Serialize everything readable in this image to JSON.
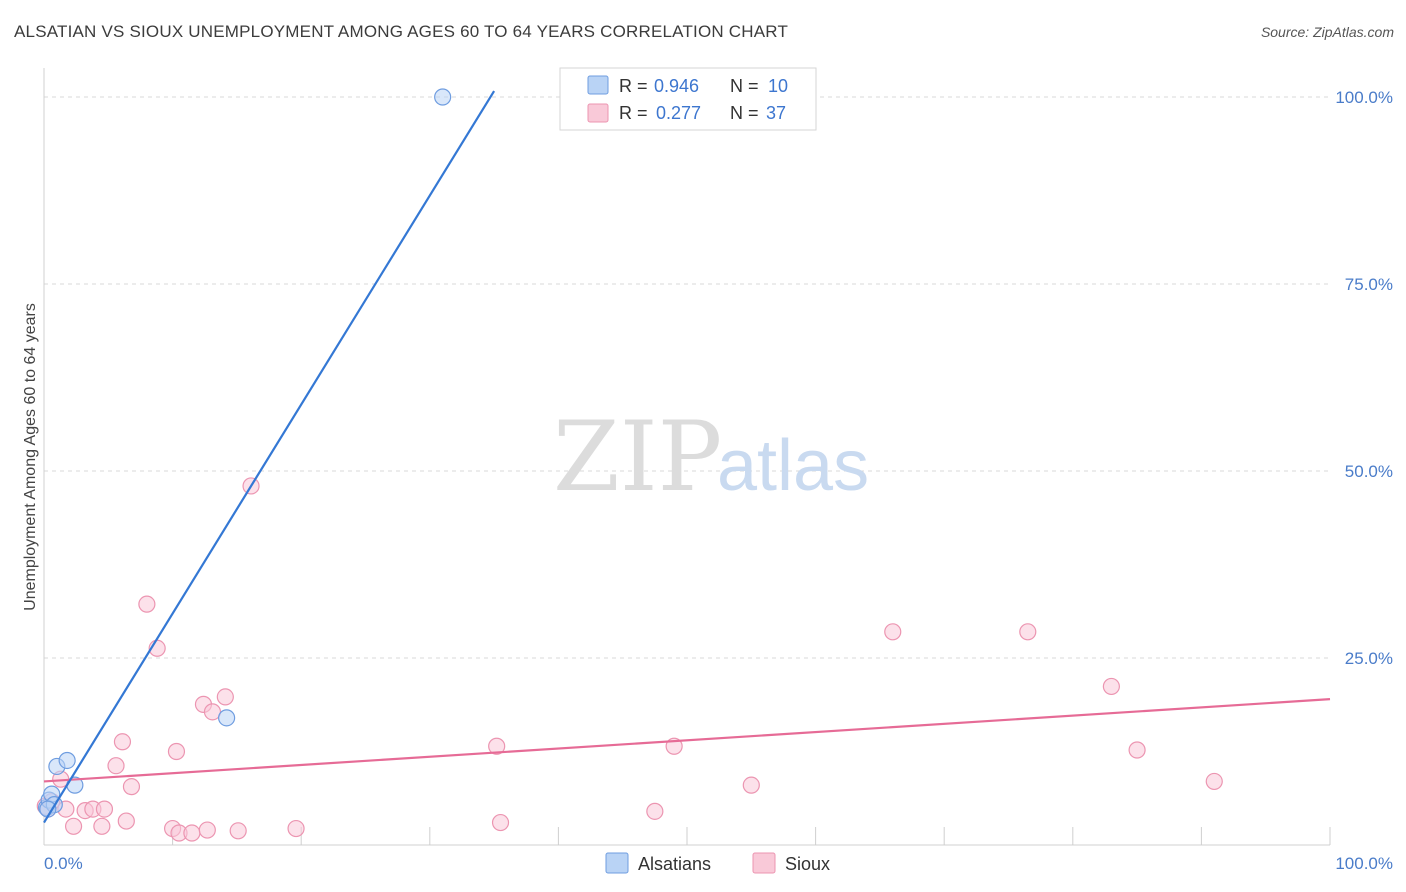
{
  "title": "ALSATIAN VS SIOUX UNEMPLOYMENT AMONG AGES 60 TO 64 YEARS CORRELATION CHART",
  "source": "Source: ZipAtlas.com",
  "watermark": {
    "zip": "ZIP",
    "atlas": "atlas"
  },
  "legend": {
    "r_label": "R =",
    "n_label": "N =",
    "rows": [
      {
        "name": "Alsatians",
        "r": "0.946",
        "n": "10",
        "fill": "#b9d3f5",
        "stroke": "#6f9de0"
      },
      {
        "name": "Sioux",
        "r": "0.277",
        "n": "37",
        "fill": "#f9c9d8",
        "stroke": "#ec95b1"
      }
    ]
  },
  "colors": {
    "blue": "#3478d4",
    "pink": "#e66b96",
    "grid": "#d8d8d8",
    "tick_label": "#4a7cc9"
  },
  "chart_data": {
    "type": "scatter",
    "title": "ALSATIAN VS SIOUX UNEMPLOYMENT AMONG AGES 60 TO 64 YEARS CORRELATION CHART",
    "xlabel": "",
    "ylabel": "Unemployment Among Ages 60 to 64 years",
    "xlim": [
      0,
      100
    ],
    "ylim": [
      0,
      100
    ],
    "x_tick_labels": [
      "0.0%",
      "100.0%"
    ],
    "y_ticks": [
      25,
      50,
      75,
      100
    ],
    "y_tick_labels": [
      "25.0%",
      "50.0%",
      "75.0%",
      "100.0%"
    ],
    "grid": true,
    "series": [
      {
        "name": "Alsatians",
        "points": [
          [
            0.2,
            5.0
          ],
          [
            0.4,
            6.0
          ],
          [
            0.6,
            6.8
          ],
          [
            0.8,
            5.4
          ],
          [
            1.0,
            10.5
          ],
          [
            1.8,
            11.3
          ],
          [
            2.4,
            8.0
          ],
          [
            14.2,
            17.0
          ],
          [
            31.0,
            100.0
          ],
          [
            0.3,
            4.8
          ]
        ],
        "trend": {
          "x1": 0.0,
          "y1": 3.0,
          "x2": 35.0,
          "y2": 100.8
        }
      },
      {
        "name": "Sioux",
        "points": [
          [
            0.1,
            5.2
          ],
          [
            0.3,
            4.8
          ],
          [
            0.6,
            5.8
          ],
          [
            1.3,
            8.8
          ],
          [
            1.7,
            4.8
          ],
          [
            2.3,
            2.5
          ],
          [
            3.2,
            4.6
          ],
          [
            3.8,
            4.8
          ],
          [
            4.5,
            2.5
          ],
          [
            4.7,
            4.8
          ],
          [
            5.6,
            10.6
          ],
          [
            6.1,
            13.8
          ],
          [
            6.4,
            3.2
          ],
          [
            6.8,
            7.8
          ],
          [
            8.0,
            32.2
          ],
          [
            8.8,
            26.3
          ],
          [
            10.0,
            2.2
          ],
          [
            10.3,
            12.5
          ],
          [
            10.5,
            1.6
          ],
          [
            11.5,
            1.6
          ],
          [
            12.4,
            18.8
          ],
          [
            12.7,
            2.0
          ],
          [
            13.1,
            17.8
          ],
          [
            14.1,
            19.8
          ],
          [
            15.1,
            1.9
          ],
          [
            16.1,
            48.0
          ],
          [
            19.6,
            2.2
          ],
          [
            35.2,
            13.2
          ],
          [
            35.5,
            3.0
          ],
          [
            47.5,
            4.5
          ],
          [
            49.0,
            13.2
          ],
          [
            55.0,
            8.0
          ],
          [
            66.0,
            28.5
          ],
          [
            76.5,
            28.5
          ],
          [
            83.0,
            21.2
          ],
          [
            85.0,
            12.7
          ],
          [
            91.0,
            8.5
          ]
        ],
        "trend": {
          "x1": 0.0,
          "y1": 8.5,
          "x2": 100.0,
          "y2": 19.5
        }
      }
    ]
  }
}
